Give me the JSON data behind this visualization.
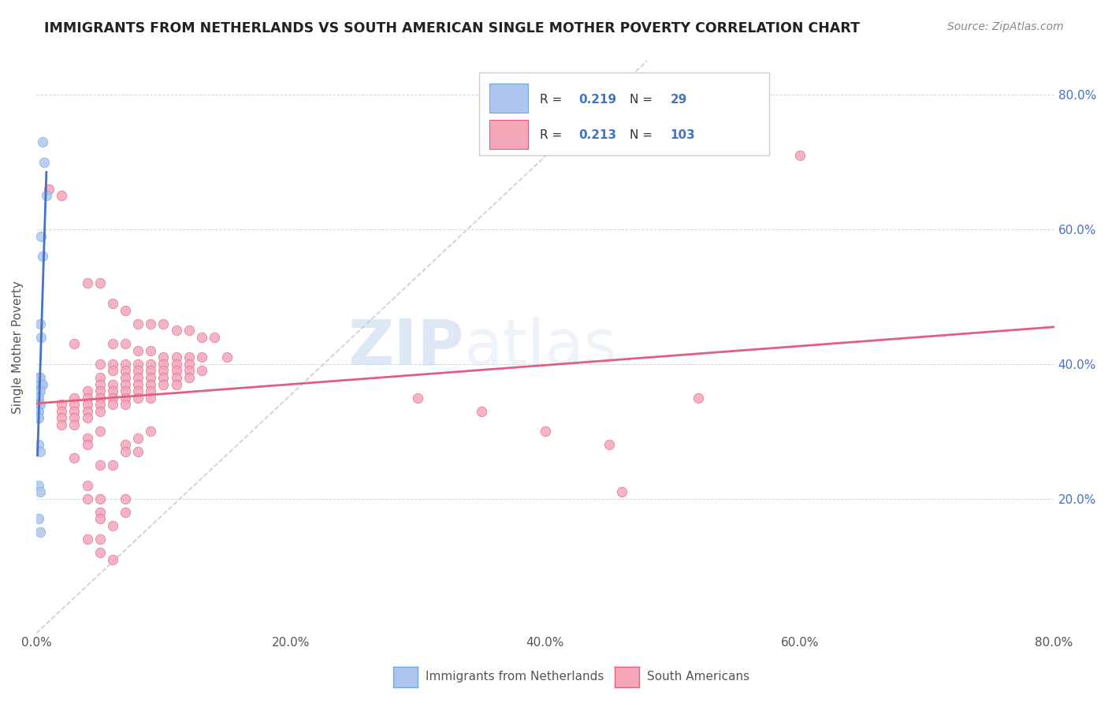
{
  "title": "IMMIGRANTS FROM NETHERLANDS VS SOUTH AMERICAN SINGLE MOTHER POVERTY CORRELATION CHART",
  "source": "Source: ZipAtlas.com",
  "ylabel": "Single Mother Poverty",
  "legend_label1": "Immigrants from Netherlands",
  "legend_label2": "South Americans",
  "blue_color": "#aec6ef",
  "pink_color": "#f4a7b9",
  "trend_blue": "#4472c4",
  "trend_pink": "#e06080",
  "trend_gray": "#b8c4d0",
  "watermark_zip": "ZIP",
  "watermark_atlas": "atlas",
  "xlim": [
    0.0,
    0.8
  ],
  "ylim": [
    0.0,
    0.85
  ],
  "netherlands_points": [
    [
      0.005,
      0.73
    ],
    [
      0.006,
      0.7
    ],
    [
      0.008,
      0.65
    ],
    [
      0.004,
      0.59
    ],
    [
      0.005,
      0.56
    ],
    [
      0.003,
      0.46
    ],
    [
      0.004,
      0.44
    ],
    [
      0.002,
      0.38
    ],
    [
      0.003,
      0.38
    ],
    [
      0.004,
      0.37
    ],
    [
      0.005,
      0.37
    ],
    [
      0.001,
      0.36
    ],
    [
      0.002,
      0.36
    ],
    [
      0.003,
      0.36
    ],
    [
      0.001,
      0.35
    ],
    [
      0.002,
      0.35
    ],
    [
      0.001,
      0.34
    ],
    [
      0.002,
      0.34
    ],
    [
      0.003,
      0.34
    ],
    [
      0.001,
      0.33
    ],
    [
      0.002,
      0.33
    ],
    [
      0.001,
      0.32
    ],
    [
      0.002,
      0.32
    ],
    [
      0.002,
      0.28
    ],
    [
      0.003,
      0.27
    ],
    [
      0.002,
      0.22
    ],
    [
      0.003,
      0.21
    ],
    [
      0.002,
      0.17
    ],
    [
      0.003,
      0.15
    ]
  ],
  "south_american_points": [
    [
      0.01,
      0.66
    ],
    [
      0.02,
      0.65
    ],
    [
      0.04,
      0.52
    ],
    [
      0.05,
      0.52
    ],
    [
      0.06,
      0.49
    ],
    [
      0.07,
      0.48
    ],
    [
      0.08,
      0.46
    ],
    [
      0.09,
      0.46
    ],
    [
      0.1,
      0.46
    ],
    [
      0.11,
      0.45
    ],
    [
      0.12,
      0.45
    ],
    [
      0.13,
      0.44
    ],
    [
      0.14,
      0.44
    ],
    [
      0.03,
      0.43
    ],
    [
      0.06,
      0.43
    ],
    [
      0.07,
      0.43
    ],
    [
      0.08,
      0.42
    ],
    [
      0.09,
      0.42
    ],
    [
      0.1,
      0.41
    ],
    [
      0.11,
      0.41
    ],
    [
      0.12,
      0.41
    ],
    [
      0.13,
      0.41
    ],
    [
      0.15,
      0.41
    ],
    [
      0.05,
      0.4
    ],
    [
      0.06,
      0.4
    ],
    [
      0.07,
      0.4
    ],
    [
      0.08,
      0.4
    ],
    [
      0.09,
      0.4
    ],
    [
      0.1,
      0.4
    ],
    [
      0.11,
      0.4
    ],
    [
      0.12,
      0.4
    ],
    [
      0.06,
      0.39
    ],
    [
      0.07,
      0.39
    ],
    [
      0.08,
      0.39
    ],
    [
      0.09,
      0.39
    ],
    [
      0.1,
      0.39
    ],
    [
      0.11,
      0.39
    ],
    [
      0.12,
      0.39
    ],
    [
      0.13,
      0.39
    ],
    [
      0.05,
      0.38
    ],
    [
      0.07,
      0.38
    ],
    [
      0.08,
      0.38
    ],
    [
      0.09,
      0.38
    ],
    [
      0.1,
      0.38
    ],
    [
      0.11,
      0.38
    ],
    [
      0.12,
      0.38
    ],
    [
      0.05,
      0.37
    ],
    [
      0.06,
      0.37
    ],
    [
      0.07,
      0.37
    ],
    [
      0.08,
      0.37
    ],
    [
      0.09,
      0.37
    ],
    [
      0.1,
      0.37
    ],
    [
      0.11,
      0.37
    ],
    [
      0.04,
      0.36
    ],
    [
      0.05,
      0.36
    ],
    [
      0.06,
      0.36
    ],
    [
      0.07,
      0.36
    ],
    [
      0.08,
      0.36
    ],
    [
      0.09,
      0.36
    ],
    [
      0.03,
      0.35
    ],
    [
      0.04,
      0.35
    ],
    [
      0.05,
      0.35
    ],
    [
      0.06,
      0.35
    ],
    [
      0.07,
      0.35
    ],
    [
      0.08,
      0.35
    ],
    [
      0.09,
      0.35
    ],
    [
      0.02,
      0.34
    ],
    [
      0.03,
      0.34
    ],
    [
      0.04,
      0.34
    ],
    [
      0.05,
      0.34
    ],
    [
      0.06,
      0.34
    ],
    [
      0.07,
      0.34
    ],
    [
      0.02,
      0.33
    ],
    [
      0.03,
      0.33
    ],
    [
      0.04,
      0.33
    ],
    [
      0.05,
      0.33
    ],
    [
      0.02,
      0.32
    ],
    [
      0.03,
      0.32
    ],
    [
      0.04,
      0.32
    ],
    [
      0.02,
      0.31
    ],
    [
      0.03,
      0.31
    ],
    [
      0.05,
      0.3
    ],
    [
      0.09,
      0.3
    ],
    [
      0.08,
      0.29
    ],
    [
      0.04,
      0.29
    ],
    [
      0.04,
      0.28
    ],
    [
      0.07,
      0.28
    ],
    [
      0.07,
      0.27
    ],
    [
      0.08,
      0.27
    ],
    [
      0.03,
      0.26
    ],
    [
      0.05,
      0.25
    ],
    [
      0.06,
      0.25
    ],
    [
      0.04,
      0.22
    ],
    [
      0.46,
      0.21
    ],
    [
      0.04,
      0.2
    ],
    [
      0.05,
      0.2
    ],
    [
      0.07,
      0.2
    ],
    [
      0.05,
      0.18
    ],
    [
      0.07,
      0.18
    ],
    [
      0.05,
      0.17
    ],
    [
      0.06,
      0.16
    ],
    [
      0.04,
      0.14
    ],
    [
      0.05,
      0.14
    ],
    [
      0.05,
      0.12
    ],
    [
      0.06,
      0.11
    ],
    [
      0.3,
      0.35
    ],
    [
      0.35,
      0.33
    ],
    [
      0.4,
      0.3
    ],
    [
      0.45,
      0.28
    ],
    [
      0.52,
      0.35
    ],
    [
      0.6,
      0.71
    ]
  ]
}
